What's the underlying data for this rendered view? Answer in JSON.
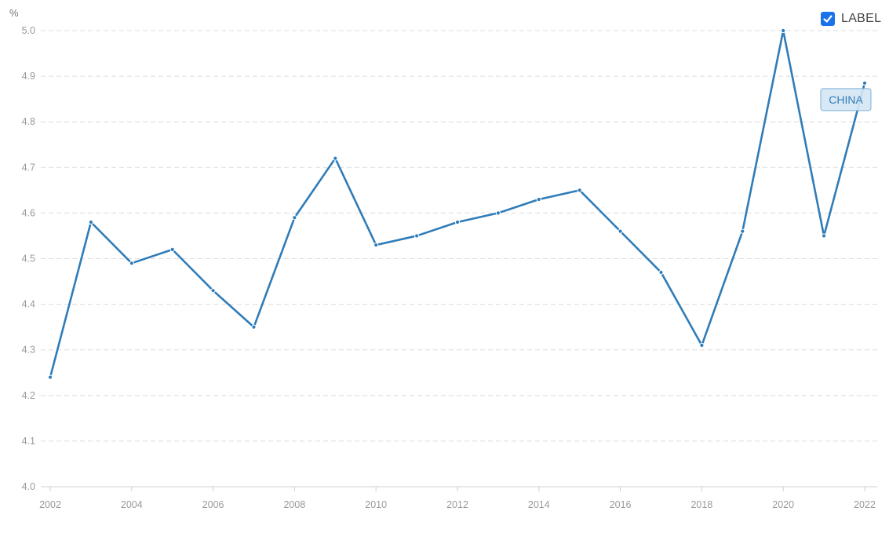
{
  "unit_label": "%",
  "toggle": {
    "label": "LABEL",
    "checked": true
  },
  "colors": {
    "line": "#2f7cb8",
    "grid": "#dcdcdc",
    "tag_bg": "#d4e6f4",
    "tag_border": "#7fb0d8",
    "checkbox": "#1a73e8"
  },
  "chart_data": {
    "type": "line",
    "x": [
      2002,
      2003,
      2004,
      2005,
      2006,
      2007,
      2008,
      2009,
      2010,
      2011,
      2012,
      2013,
      2014,
      2015,
      2016,
      2017,
      2018,
      2019,
      2020,
      2021,
      2022
    ],
    "series": [
      {
        "name": "CHINA",
        "values": [
          4.24,
          4.58,
          4.49,
          4.52,
          4.43,
          4.35,
          4.59,
          4.72,
          4.53,
          4.55,
          4.58,
          4.6,
          4.63,
          4.65,
          4.56,
          4.47,
          4.31,
          4.56,
          5.0,
          4.55,
          4.885
        ]
      }
    ],
    "x_ticks": [
      "2002",
      "2004",
      "2006",
      "2008",
      "2010",
      "2012",
      "2014",
      "2016",
      "2018",
      "2020",
      "2022"
    ],
    "y_ticks": [
      "4.0",
      "4.1",
      "4.2",
      "4.3",
      "4.4",
      "4.5",
      "4.6",
      "4.7",
      "4.8",
      "4.9",
      "5.0"
    ],
    "xlim": [
      2002,
      2022
    ],
    "ylim": [
      4.0,
      5.0
    ],
    "ylabel": "%",
    "grid": true,
    "legend": "none"
  }
}
